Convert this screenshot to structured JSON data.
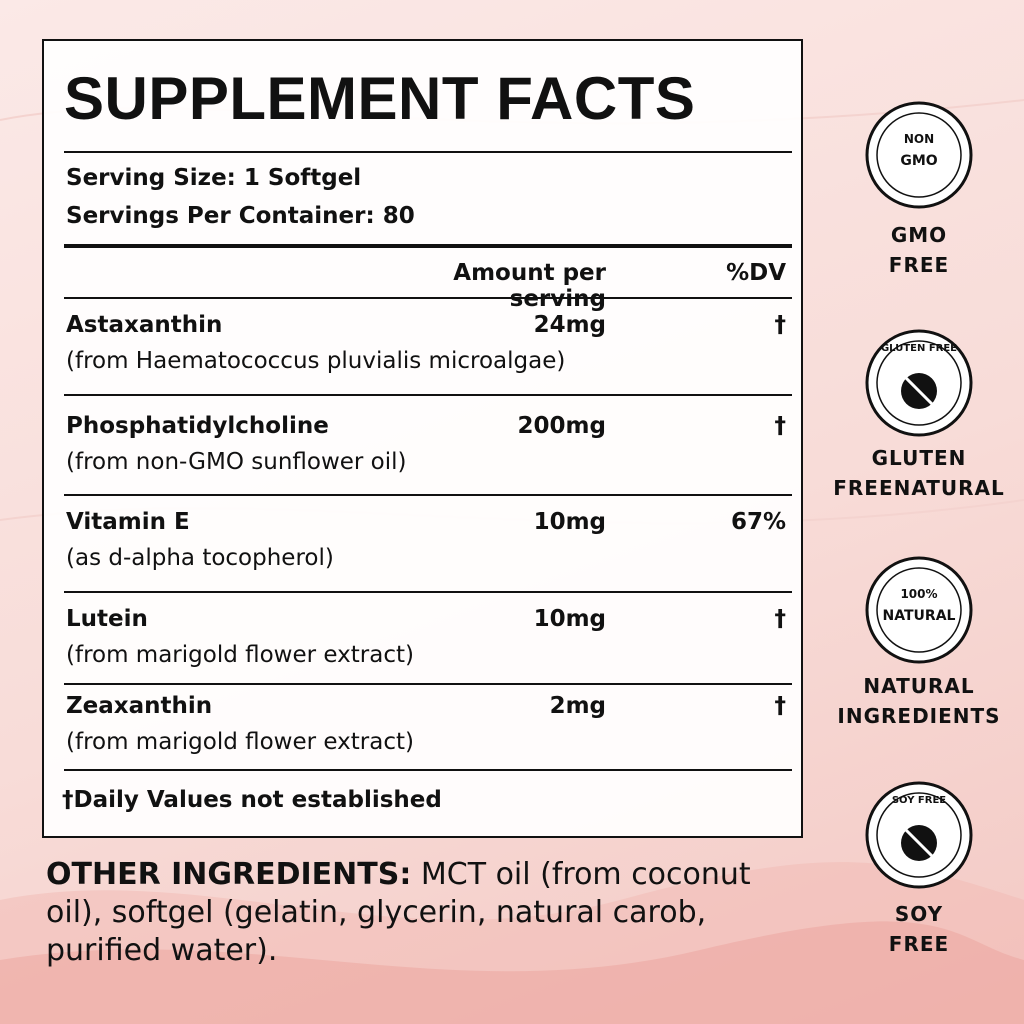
{
  "panel": {
    "title": "SUPPLEMENT FACTS",
    "serving_size": "Serving Size: 1 Softgel",
    "servings_per_container": "Servings Per Container: 80",
    "header": {
      "amount": "Amount per serving",
      "dv": "%DV"
    },
    "rows": [
      {
        "name": "Astaxanthin",
        "source": "(from Haematococcus pluvialis microalgae)",
        "amount": "24mg",
        "dv": "†"
      },
      {
        "name": "Phosphatidylcholine",
        "source": "(from non-GMO sunflower oil)",
        "amount": "200mg",
        "dv": "†"
      },
      {
        "name": "Vitamin E",
        "source": "(as d-alpha tocopherol)",
        "amount": "10mg",
        "dv": "67%"
      },
      {
        "name": "Lutein",
        "source": "(from marigold flower extract)",
        "amount": "10mg",
        "dv": "†"
      },
      {
        "name": "Zeaxanthin",
        "source": "(from marigold flower extract)",
        "amount": "2mg",
        "dv": "†"
      }
    ],
    "footnote": "†Daily Values not established"
  },
  "other_ingredients": {
    "label": "OTHER INGREDIENTS:",
    "text": " MCT oil (from coconut oil), softgel (gelatin, glycerin, natural carob, purified water)."
  },
  "badges": [
    {
      "icon_text": [
        "NON",
        "GMO"
      ],
      "label_lines": [
        "GMO",
        "FREE"
      ]
    },
    {
      "icon_text": [
        "GLUTEN FREE"
      ],
      "label_lines": [
        "GLUTEN",
        "FREENATURAL"
      ]
    },
    {
      "icon_text": [
        "100%",
        "NATURAL"
      ],
      "label_lines": [
        "NATURAL",
        "INGREDIENTS"
      ]
    },
    {
      "icon_text": [
        "SOY FREE"
      ],
      "label_lines": [
        "SOY",
        "FREE"
      ]
    }
  ]
}
